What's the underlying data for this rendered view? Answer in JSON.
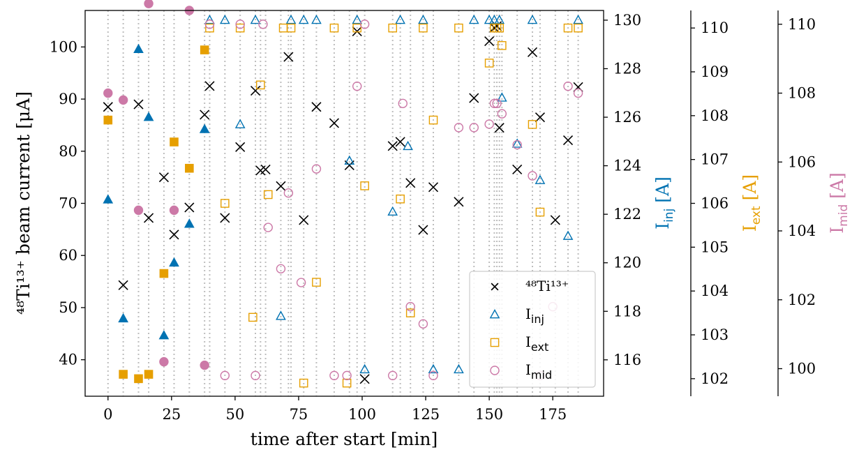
{
  "chart_data": {
    "type": "scatter",
    "xlabel": "time after start [min]",
    "ylabel": "⁴⁸Ti¹³⁺ beam current [μA]",
    "xlim": [
      -9,
      195
    ],
    "ylim": [
      33,
      107
    ],
    "x_ticks": [
      0,
      25,
      50,
      75,
      100,
      125,
      150,
      175
    ],
    "y_ticks": [
      40,
      50,
      60,
      70,
      80,
      90,
      100
    ],
    "vlines": [
      0,
      6,
      12,
      16,
      22,
      26,
      32,
      38,
      40,
      46,
      52,
      58,
      60,
      62,
      68,
      71,
      72,
      77,
      82,
      89,
      95,
      98,
      101,
      112,
      115,
      119,
      124,
      128,
      138,
      144,
      150,
      152,
      153,
      154,
      155,
      161,
      167,
      170,
      176,
      181,
      185
    ],
    "colors": {
      "beam": "#000000",
      "inj": "#0072b2",
      "ext": "#e69f00",
      "mid": "#cc79a7",
      "grid": "#bdbdbd"
    },
    "secondary_axes": [
      {
        "key": "inj",
        "label_base": "I",
        "label_sub": "inj",
        "unit": "[A]",
        "range": [
          114.5,
          130.4
        ],
        "ticks": [
          116,
          118,
          120,
          122,
          124,
          126,
          128,
          130
        ]
      },
      {
        "key": "ext",
        "label_base": "I",
        "label_sub": "ext",
        "unit": "[A]",
        "range": [
          101.6,
          110.4
        ],
        "ticks": [
          102,
          103,
          104,
          105,
          106,
          107,
          108,
          109,
          110
        ]
      },
      {
        "key": "mid",
        "label_base": "I",
        "label_sub": "mid",
        "unit": "[A]",
        "range": [
          99.2,
          110.4
        ],
        "ticks": [
          100,
          102,
          104,
          106,
          108,
          110
        ]
      }
    ],
    "legend": {
      "position": "lower right",
      "entries": [
        {
          "key": "beam",
          "marker": "x",
          "label_base": "⁴⁸Ti¹³⁺",
          "label_sub": ""
        },
        {
          "key": "inj",
          "marker": "triangle-open",
          "label_base": "I",
          "label_sub": "inj"
        },
        {
          "key": "ext",
          "marker": "square-open",
          "label_base": "I",
          "label_sub": "ext"
        },
        {
          "key": "mid",
          "marker": "circle-open",
          "label_base": "I",
          "label_sub": "mid"
        }
      ]
    },
    "series": [
      {
        "name": "48Ti13+ beam current",
        "key": "beam",
        "axis": "left",
        "marker": "x",
        "points": [
          [
            0,
            88.5
          ],
          [
            6,
            54.3
          ],
          [
            12,
            89
          ],
          [
            16,
            67.2
          ],
          [
            22,
            75
          ],
          [
            26,
            64
          ],
          [
            32,
            69.2
          ],
          [
            38,
            87
          ],
          [
            40,
            92.5
          ],
          [
            46,
            67.2
          ],
          [
            52,
            80.8
          ],
          [
            58,
            91.6
          ],
          [
            60,
            76.3
          ],
          [
            62,
            76.5
          ],
          [
            68,
            73.3
          ],
          [
            71,
            98.1
          ],
          [
            77,
            66.8
          ],
          [
            82,
            88.5
          ],
          [
            89,
            85.4
          ],
          [
            95,
            77.3
          ],
          [
            98,
            103
          ],
          [
            101,
            36.3
          ],
          [
            112,
            81
          ],
          [
            115,
            81.8
          ],
          [
            119,
            73.9
          ],
          [
            124,
            64.9
          ],
          [
            128,
            73.1
          ],
          [
            138,
            70.3
          ],
          [
            144,
            90.2
          ],
          [
            150,
            101.1
          ],
          [
            152,
            103.7
          ],
          [
            153,
            104
          ],
          [
            154,
            84.5
          ],
          [
            161,
            76.5
          ],
          [
            167,
            99
          ],
          [
            170,
            86.5
          ],
          [
            176,
            66.8
          ],
          [
            181,
            82.1
          ],
          [
            185,
            92.3
          ]
        ]
      },
      {
        "name": "I_inj filled",
        "key": "inj",
        "axis": "inj",
        "marker": "triangle-filled",
        "points": [
          [
            0,
            122.6
          ],
          [
            6,
            117.7
          ],
          [
            12,
            128.8
          ],
          [
            16,
            126
          ],
          [
            22,
            117
          ],
          [
            26,
            120
          ],
          [
            32,
            121.6
          ],
          [
            38,
            125.5
          ]
        ]
      },
      {
        "name": "I_inj",
        "key": "inj",
        "axis": "inj",
        "marker": "triangle-open",
        "points": [
          [
            40,
            130
          ],
          [
            46,
            130
          ],
          [
            52,
            125.7
          ],
          [
            58,
            130
          ],
          [
            68,
            117.8
          ],
          [
            72,
            130
          ],
          [
            77,
            130
          ],
          [
            82,
            130
          ],
          [
            95,
            124.2
          ],
          [
            98,
            130
          ],
          [
            101,
            115.6
          ],
          [
            112,
            122.1
          ],
          [
            115,
            130
          ],
          [
            118,
            124.8
          ],
          [
            124,
            130
          ],
          [
            128,
            115.6
          ],
          [
            138,
            115.6
          ],
          [
            144,
            130
          ],
          [
            150,
            130
          ],
          [
            152,
            130
          ],
          [
            154,
            130
          ],
          [
            155,
            126.8
          ],
          [
            161,
            124.9
          ],
          [
            167,
            130
          ],
          [
            170,
            123.4
          ],
          [
            181,
            121.1
          ],
          [
            185,
            130
          ]
        ]
      },
      {
        "name": "I_ext filled",
        "key": "ext",
        "axis": "ext",
        "marker": "square-filled",
        "points": [
          [
            0,
            107.9
          ],
          [
            6,
            102.1
          ],
          [
            12,
            102
          ],
          [
            16,
            102.1
          ],
          [
            22,
            104.4
          ],
          [
            26,
            107.4
          ],
          [
            32,
            106.8
          ],
          [
            38,
            109.5
          ]
        ]
      },
      {
        "name": "I_ext",
        "key": "ext",
        "axis": "ext",
        "marker": "square-open",
        "points": [
          [
            40,
            110
          ],
          [
            46,
            106
          ],
          [
            52,
            110
          ],
          [
            57,
            103.4
          ],
          [
            60,
            108.7
          ],
          [
            63,
            106.2
          ],
          [
            69,
            110
          ],
          [
            72,
            110
          ],
          [
            77,
            101.9
          ],
          [
            82,
            104.2
          ],
          [
            89,
            110
          ],
          [
            94,
            101.9
          ],
          [
            98,
            110
          ],
          [
            101,
            106.4
          ],
          [
            112,
            110
          ],
          [
            115,
            106.1
          ],
          [
            119,
            103.5
          ],
          [
            124,
            110
          ],
          [
            128,
            107.9
          ],
          [
            138,
            110
          ],
          [
            150,
            109.2
          ],
          [
            152,
            110
          ],
          [
            153,
            110
          ],
          [
            154,
            110
          ],
          [
            155,
            109.6
          ],
          [
            167,
            107.8
          ],
          [
            170,
            105.8
          ],
          [
            181,
            110
          ],
          [
            185,
            110
          ]
        ]
      },
      {
        "name": "I_mid filled",
        "key": "mid",
        "axis": "mid",
        "marker": "circle-filled",
        "points": [
          [
            0,
            108
          ],
          [
            6,
            107.8
          ],
          [
            12,
            104.6
          ],
          [
            16,
            110.6
          ],
          [
            22,
            100.2
          ],
          [
            26,
            104.6
          ],
          [
            32,
            110.4
          ],
          [
            38,
            100.1
          ]
        ]
      },
      {
        "name": "I_mid",
        "key": "mid",
        "axis": "mid",
        "marker": "circle-open",
        "points": [
          [
            40,
            110
          ],
          [
            46,
            99.8
          ],
          [
            52,
            110
          ],
          [
            58,
            99.8
          ],
          [
            61,
            110
          ],
          [
            63,
            104.1
          ],
          [
            68,
            102.9
          ],
          [
            71,
            105.1
          ],
          [
            76,
            102.5
          ],
          [
            82,
            105.8
          ],
          [
            89,
            99.8
          ],
          [
            94,
            99.8
          ],
          [
            98,
            108.2
          ],
          [
            101,
            110
          ],
          [
            112,
            99.8
          ],
          [
            116,
            107.7
          ],
          [
            119,
            101.8
          ],
          [
            124,
            101.3
          ],
          [
            128,
            99.8
          ],
          [
            138,
            107
          ],
          [
            144,
            107
          ],
          [
            150,
            107.1
          ],
          [
            152,
            107.7
          ],
          [
            153,
            107.7
          ],
          [
            155,
            107.4
          ],
          [
            161,
            106.5
          ],
          [
            167,
            105.6
          ],
          [
            170,
            99.8
          ],
          [
            175,
            101.8
          ],
          [
            181,
            108.2
          ],
          [
            185,
            108
          ]
        ]
      }
    ]
  }
}
